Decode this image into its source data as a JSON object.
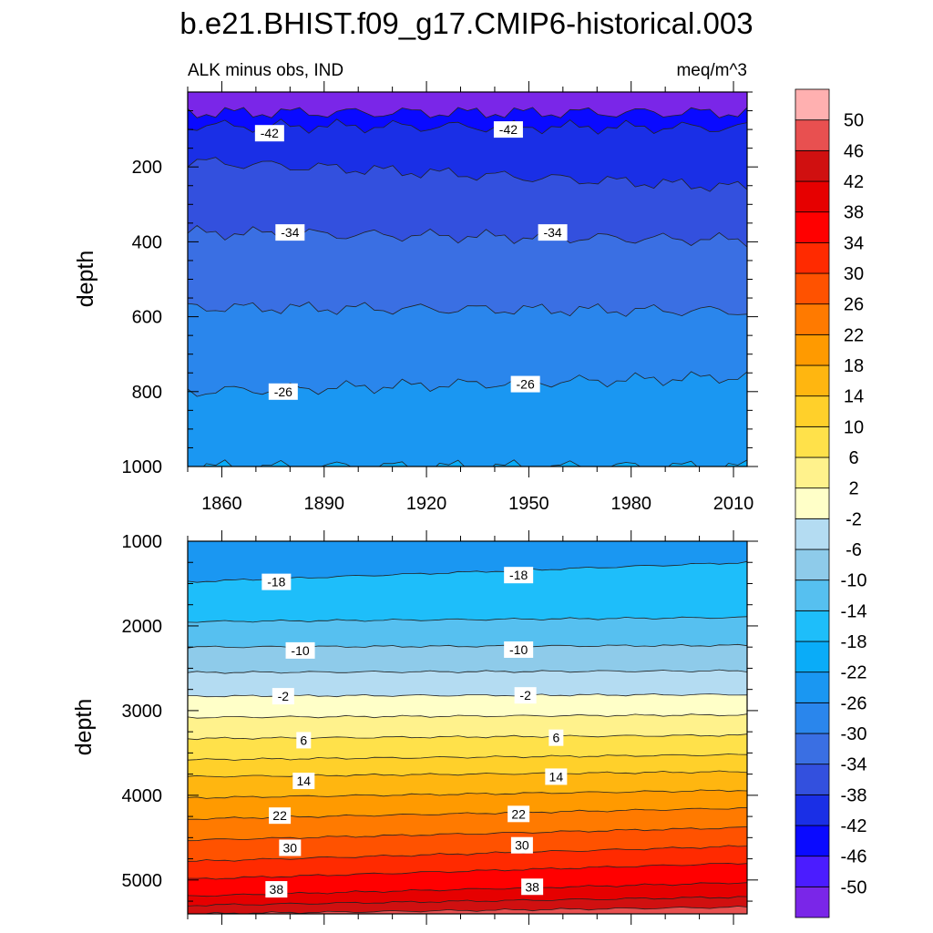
{
  "chart_data": {
    "type": "heatmap",
    "title": "b.e21.BHIST.f09_g17.CMIP6-historical.003",
    "subtitle_left": "ALK minus obs, IND",
    "subtitle_right": "meq/m^3",
    "ylabel": "depth",
    "xlim": [
      1850,
      2014
    ],
    "x_ticks": [
      "1860",
      "1890",
      "1920",
      "1950",
      "1980",
      "2010"
    ],
    "colorbar": {
      "levels": [
        "-50",
        "-46",
        "-42",
        "-38",
        "-34",
        "-30",
        "-26",
        "-22",
        "-18",
        "-14",
        "-10",
        "-6",
        "-2",
        "2",
        "6",
        "10",
        "14",
        "18",
        "22",
        "26",
        "30",
        "34",
        "38",
        "42",
        "46",
        "50"
      ],
      "colors": [
        "#7a26e8",
        "#4b1cff",
        "#0a0aff",
        "#1a2fe6",
        "#3350de",
        "#3a6fe3",
        "#2a86ec",
        "#1a97f2",
        "#0aacf8",
        "#1ebefa",
        "#56c0f0",
        "#8ecbea",
        "#b4dcf2",
        "#ffffc8",
        "#fff28c",
        "#ffe14a",
        "#ffd02a",
        "#ffb610",
        "#ff9a00",
        "#ff7a00",
        "#ff5200",
        "#ff2a00",
        "#ff0000",
        "#e60000",
        "#d01010",
        "#e85050",
        "#ffb0b0"
      ]
    },
    "panels": [
      {
        "name": "upper",
        "ylim": [
          0,
          1000
        ],
        "y_ticks": [
          "200",
          "400",
          "600",
          "800",
          "1000"
        ],
        "boundaries": [
          {
            "lower": "-50",
            "upper": "-46",
            "depth": [
              55,
              55
            ]
          },
          {
            "lower": "-46",
            "upper": "-42",
            "depth": [
              90,
              95
            ]
          },
          {
            "lower": "-42",
            "upper": "-38",
            "depth": [
              185,
              255
            ]
          },
          {
            "lower": "-38",
            "upper": "-34",
            "depth": [
              375,
              395
            ]
          },
          {
            "lower": "-34",
            "upper": "-30",
            "depth": [
              575,
              585
            ]
          },
          {
            "lower": "-30",
            "upper": "-26",
            "depth": [
              800,
              760
            ]
          },
          {
            "lower": "-26",
            "upper": "-22",
            "depth": [
              1000,
              1000
            ]
          }
        ],
        "contour_labels": [
          {
            "text": "-42",
            "year": 1874,
            "depth": 110
          },
          {
            "text": "-42",
            "year": 1944,
            "depth": 100
          },
          {
            "text": "-34",
            "year": 1880,
            "depth": 375
          },
          {
            "text": "-34",
            "year": 1957,
            "depth": 375
          },
          {
            "text": "-26",
            "year": 1878,
            "depth": 800
          },
          {
            "text": "-26",
            "year": 1949,
            "depth": 780
          }
        ]
      },
      {
        "name": "lower",
        "ylim": [
          1000,
          5400
        ],
        "y_ticks": [
          "1000",
          "2000",
          "3000",
          "4000",
          "5000"
        ],
        "boundaries": [
          {
            "lower": "-22",
            "upper": "-18",
            "depth": [
              1480,
              1250
            ]
          },
          {
            "lower": "-18",
            "upper": "-14",
            "depth": [
              1950,
              1900
            ]
          },
          {
            "lower": "-14",
            "upper": "-10",
            "depth": [
              2250,
              2230
            ]
          },
          {
            "lower": "-10",
            "upper": "-6",
            "depth": [
              2550,
              2530
            ]
          },
          {
            "lower": "-6",
            "upper": "-2",
            "depth": [
              2830,
              2810
            ]
          },
          {
            "lower": "-2",
            "upper": "2",
            "depth": [
              3080,
              3050
            ]
          },
          {
            "lower": "2",
            "upper": "6",
            "depth": [
              3330,
              3290
            ]
          },
          {
            "lower": "6",
            "upper": "10",
            "depth": [
              3580,
              3520
            ]
          },
          {
            "lower": "10",
            "upper": "14",
            "depth": [
              3780,
              3720
            ]
          },
          {
            "lower": "14",
            "upper": "18",
            "depth": [
              4030,
              3940
            ]
          },
          {
            "lower": "18",
            "upper": "22",
            "depth": [
              4280,
              4150
            ]
          },
          {
            "lower": "22",
            "upper": "26",
            "depth": [
              4530,
              4380
            ]
          },
          {
            "lower": "26",
            "upper": "30",
            "depth": [
              4780,
              4600
            ]
          },
          {
            "lower": "30",
            "upper": "34",
            "depth": [
              4990,
              4800
            ]
          },
          {
            "lower": "34",
            "upper": "38",
            "depth": [
              5190,
              5030
            ]
          },
          {
            "lower": "38",
            "upper": "42",
            "depth": [
              5300,
              5200
            ]
          },
          {
            "lower": "42",
            "upper": "46",
            "depth": [
              5400,
              5320
            ]
          }
        ],
        "contour_labels": [
          {
            "text": "-18",
            "year": 1876,
            "depth": 1480
          },
          {
            "text": "-18",
            "year": 1947,
            "depth": 1400
          },
          {
            "text": "-10",
            "year": 1883,
            "depth": 2290
          },
          {
            "text": "-10",
            "year": 1947,
            "depth": 2280
          },
          {
            "text": "-2",
            "year": 1878,
            "depth": 2830
          },
          {
            "text": "-2",
            "year": 1949,
            "depth": 2820
          },
          {
            "text": "6",
            "year": 1884,
            "depth": 3350
          },
          {
            "text": "6",
            "year": 1958,
            "depth": 3320
          },
          {
            "text": "14",
            "year": 1884,
            "depth": 3830
          },
          {
            "text": "14",
            "year": 1958,
            "depth": 3780
          },
          {
            "text": "22",
            "year": 1877,
            "depth": 4240
          },
          {
            "text": "22",
            "year": 1947,
            "depth": 4220
          },
          {
            "text": "30",
            "year": 1880,
            "depth": 4620
          },
          {
            "text": "30",
            "year": 1948,
            "depth": 4590
          },
          {
            "text": "38",
            "year": 1876,
            "depth": 5110
          },
          {
            "text": "38",
            "year": 1951,
            "depth": 5080
          }
        ]
      }
    ]
  }
}
